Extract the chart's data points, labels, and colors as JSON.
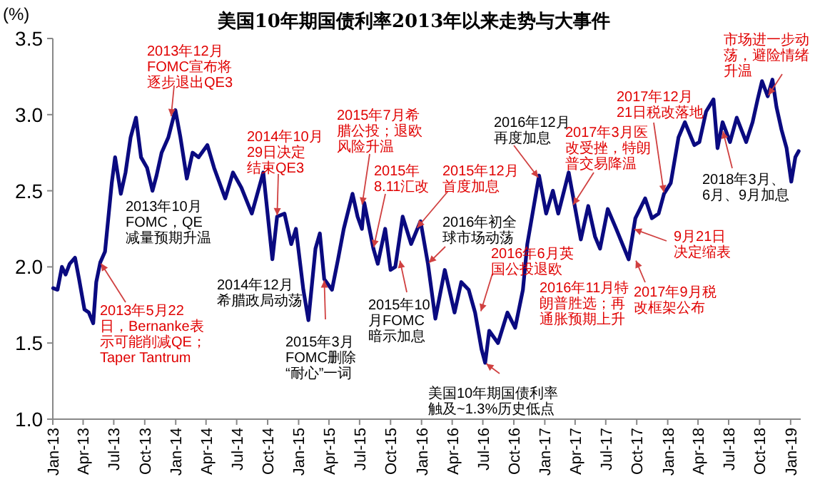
{
  "chart_data": {
    "type": "line",
    "title": "美国10年期国债利率2013年以来走势与大事件",
    "ylabel": "(%)",
    "series": [
      {
        "color": "#0a0a80",
        "x": [
          "2013-01-02",
          "2013-01-15",
          "2013-01-28",
          "2013-02-08",
          "2013-02-20",
          "2013-03-08",
          "2013-03-20",
          "2013-04-05",
          "2013-04-18",
          "2013-05-01",
          "2013-05-10",
          "2013-05-22",
          "2013-06-05",
          "2013-06-25",
          "2013-07-05",
          "2013-07-22",
          "2013-08-05",
          "2013-08-20",
          "2013-09-05",
          "2013-09-20",
          "2013-10-08",
          "2013-10-24",
          "2013-11-05",
          "2013-11-20",
          "2013-12-10",
          "2013-12-31",
          "2014-01-15",
          "2014-02-03",
          "2014-02-20",
          "2014-03-10",
          "2014-04-05",
          "2014-04-25",
          "2014-05-28",
          "2014-06-20",
          "2014-07-15",
          "2014-08-15",
          "2014-09-18",
          "2014-10-15",
          "2014-10-29",
          "2014-11-20",
          "2014-12-10",
          "2014-12-24",
          "2015-01-15",
          "2015-01-30",
          "2015-02-20",
          "2015-03-05",
          "2015-03-18",
          "2015-04-10",
          "2015-04-28",
          "2015-05-15",
          "2015-06-10",
          "2015-06-25",
          "2015-07-08",
          "2015-07-15",
          "2015-08-11",
          "2015-08-24",
          "2015-09-15",
          "2015-10-01",
          "2015-10-15",
          "2015-11-06",
          "2015-12-01",
          "2015-12-29",
          "2016-01-20",
          "2016-02-11",
          "2016-03-10",
          "2016-04-08",
          "2016-04-28",
          "2016-05-20",
          "2016-06-08",
          "2016-06-27",
          "2016-07-08",
          "2016-07-20",
          "2016-08-15",
          "2016-09-12",
          "2016-10-05",
          "2016-10-28",
          "2016-11-10",
          "2016-12-15",
          "2017-01-05",
          "2017-01-25",
          "2017-02-10",
          "2017-03-13",
          "2017-04-18",
          "2017-05-10",
          "2017-05-30",
          "2017-06-14",
          "2017-07-07",
          "2017-08-01",
          "2017-09-07",
          "2017-09-27",
          "2017-10-26",
          "2017-11-15",
          "2017-12-05",
          "2017-12-21",
          "2018-01-10",
          "2018-02-02",
          "2018-02-21",
          "2018-03-21",
          "2018-04-05",
          "2018-04-25",
          "2018-05-17",
          "2018-05-29",
          "2018-06-13",
          "2018-07-05",
          "2018-07-25",
          "2018-08-22",
          "2018-09-10",
          "2018-09-25",
          "2018-10-08",
          "2018-10-25",
          "2018-11-08",
          "2018-11-20",
          "2018-12-05",
          "2018-12-20",
          "2019-01-03",
          "2019-01-15",
          "2019-01-25"
        ],
        "values": [
          1.86,
          1.85,
          2.0,
          1.95,
          2.02,
          2.06,
          1.92,
          1.72,
          1.7,
          1.63,
          1.9,
          2.03,
          2.1,
          2.55,
          2.72,
          2.48,
          2.62,
          2.85,
          2.98,
          2.72,
          2.65,
          2.5,
          2.6,
          2.75,
          2.85,
          3.03,
          2.85,
          2.58,
          2.75,
          2.72,
          2.8,
          2.65,
          2.45,
          2.62,
          2.52,
          2.35,
          2.62,
          2.05,
          2.33,
          2.35,
          2.15,
          2.25,
          1.85,
          1.65,
          2.12,
          2.22,
          1.92,
          1.85,
          2.05,
          2.25,
          2.48,
          2.33,
          2.25,
          2.42,
          2.12,
          2.02,
          2.25,
          1.98,
          2.0,
          2.33,
          2.15,
          2.3,
          2.02,
          1.66,
          1.98,
          1.7,
          1.9,
          1.85,
          1.7,
          1.46,
          1.37,
          1.58,
          1.5,
          1.7,
          1.6,
          1.85,
          2.15,
          2.6,
          2.35,
          2.5,
          2.35,
          2.62,
          2.18,
          2.4,
          2.2,
          2.12,
          2.38,
          2.25,
          2.05,
          2.32,
          2.45,
          2.32,
          2.35,
          2.48,
          2.55,
          2.85,
          2.95,
          2.8,
          2.82,
          3.02,
          3.1,
          2.78,
          2.95,
          2.82,
          2.98,
          2.82,
          2.95,
          3.1,
          3.22,
          3.12,
          3.23,
          3.05,
          2.9,
          2.78,
          2.56,
          2.72,
          2.76
        ]
      }
    ],
    "xlim": [
      "2013-01-01",
      "2019-01-31"
    ],
    "xticks": [
      {
        "value": "2013-01",
        "label": "Jan-13"
      },
      {
        "value": "2013-04",
        "label": "Apr-13"
      },
      {
        "value": "2013-07",
        "label": "Jul-13"
      },
      {
        "value": "2013-10",
        "label": "Oct-13"
      },
      {
        "value": "2014-01",
        "label": "Jan-14"
      },
      {
        "value": "2014-04",
        "label": "Apr-14"
      },
      {
        "value": "2014-07",
        "label": "Jul-14"
      },
      {
        "value": "2014-10",
        "label": "Oct-14"
      },
      {
        "value": "2015-01",
        "label": "Jan-15"
      },
      {
        "value": "2015-04",
        "label": "Apr-15"
      },
      {
        "value": "2015-07",
        "label": "Jul-15"
      },
      {
        "value": "2015-10",
        "label": "Oct-15"
      },
      {
        "value": "2016-01",
        "label": "Jan-16"
      },
      {
        "value": "2016-04",
        "label": "Apr-16"
      },
      {
        "value": "2016-07",
        "label": "Jul-16"
      },
      {
        "value": "2016-10",
        "label": "Oct-16"
      },
      {
        "value": "2017-01",
        "label": "Jan-17"
      },
      {
        "value": "2017-04",
        "label": "Apr-17"
      },
      {
        "value": "2017-07",
        "label": "Jul-17"
      },
      {
        "value": "2017-10",
        "label": "Oct-17"
      },
      {
        "value": "2018-01",
        "label": "Jan-18"
      },
      {
        "value": "2018-04",
        "label": "Apr-18"
      },
      {
        "value": "2018-07",
        "label": "Jul-18"
      },
      {
        "value": "2018-10",
        "label": "Oct-18"
      },
      {
        "value": "2019-01",
        "label": "Jan-19"
      }
    ],
    "ylim": [
      1.0,
      3.5
    ],
    "yticks": [
      {
        "value": 1.0,
        "label": "1.0"
      },
      {
        "value": 1.5,
        "label": "1.5"
      },
      {
        "value": 2.0,
        "label": "2.0"
      },
      {
        "value": 2.5,
        "label": "2.5"
      },
      {
        "value": 3.0,
        "label": "3.0"
      },
      {
        "value": 3.5,
        "label": "3.5"
      }
    ],
    "grid": false,
    "annotations": [
      {
        "text": "2013年12月FOMC宣布将逐步退出QE3",
        "x": "2013-12-18",
        "y": 2.98
      },
      "2013年10月FOMC，QE减量预期升温",
      {
        "text": "2014年10月29日决定结束QE3",
        "x": "2014-10-29",
        "y": 2.33
      },
      "2014年12月希腊政局动荡",
      {
        "text": "2015年3月FOMC删除“耐心”一词",
        "x": "2015-03-18",
        "y": 1.92
      },
      {
        "text": "2015年7月希腊公投；退欧风险升温",
        "x": "2015-07-08",
        "y": 2.4
      },
      {
        "text": "2015年8.11汇改",
        "x": "2015-08-11",
        "y": 2.12
      },
      {
        "text": "2015年10月FOMC暗示加息",
        "x": "2015-10-28",
        "y": 2.05
      },
      {
        "text": "2015年12月首度加息",
        "x": "2015-12-16",
        "y": 2.25
      },
      {
        "text": "2016年初全球市场动荡",
        "x": "2016-01-20",
        "y": 2.02
      },
      {
        "text": "2016年6月英国公投退欧",
        "x": "2016-06-24",
        "y": 1.7
      },
      {
        "text": "美国10年期国债利率触及~1.3%历史低点",
        "x": "2016-07-08",
        "y": 1.37
      },
      "2016年11月特朗普胜选；再通胀预期上升",
      {
        "text": "2016年12月再度加息",
        "x": "2016-12-15",
        "y": 2.58
      },
      {
        "text": "2017年3月医改受挫，特朗普交易降温",
        "x": "2017-03-24",
        "y": 2.4
      },
      {
        "text": "2017年12月21日税改落地",
        "x": "2017-12-21",
        "y": 2.48
      },
      {
        "text": "9月21日决定缩表",
        "x": "2017-09-20",
        "y": 2.25
      },
      {
        "text": "2017年9月税改框架公布",
        "x": "2017-09-27",
        "y": 2.05
      },
      {
        "text": "2018年3月、6月、9月加息",
        "x": "2018-06-13",
        "y": 2.9
      },
      {
        "text": "市场进一步动荡，避险情绪升温",
        "x": "2018-10-25",
        "y": 3.12
      },
      {
        "text": "2013年5月22日，Bernanke表示可能削减QE；Taper Tantrum",
        "x": "2013-05-22",
        "y": 2.03
      }
    ]
  }
}
